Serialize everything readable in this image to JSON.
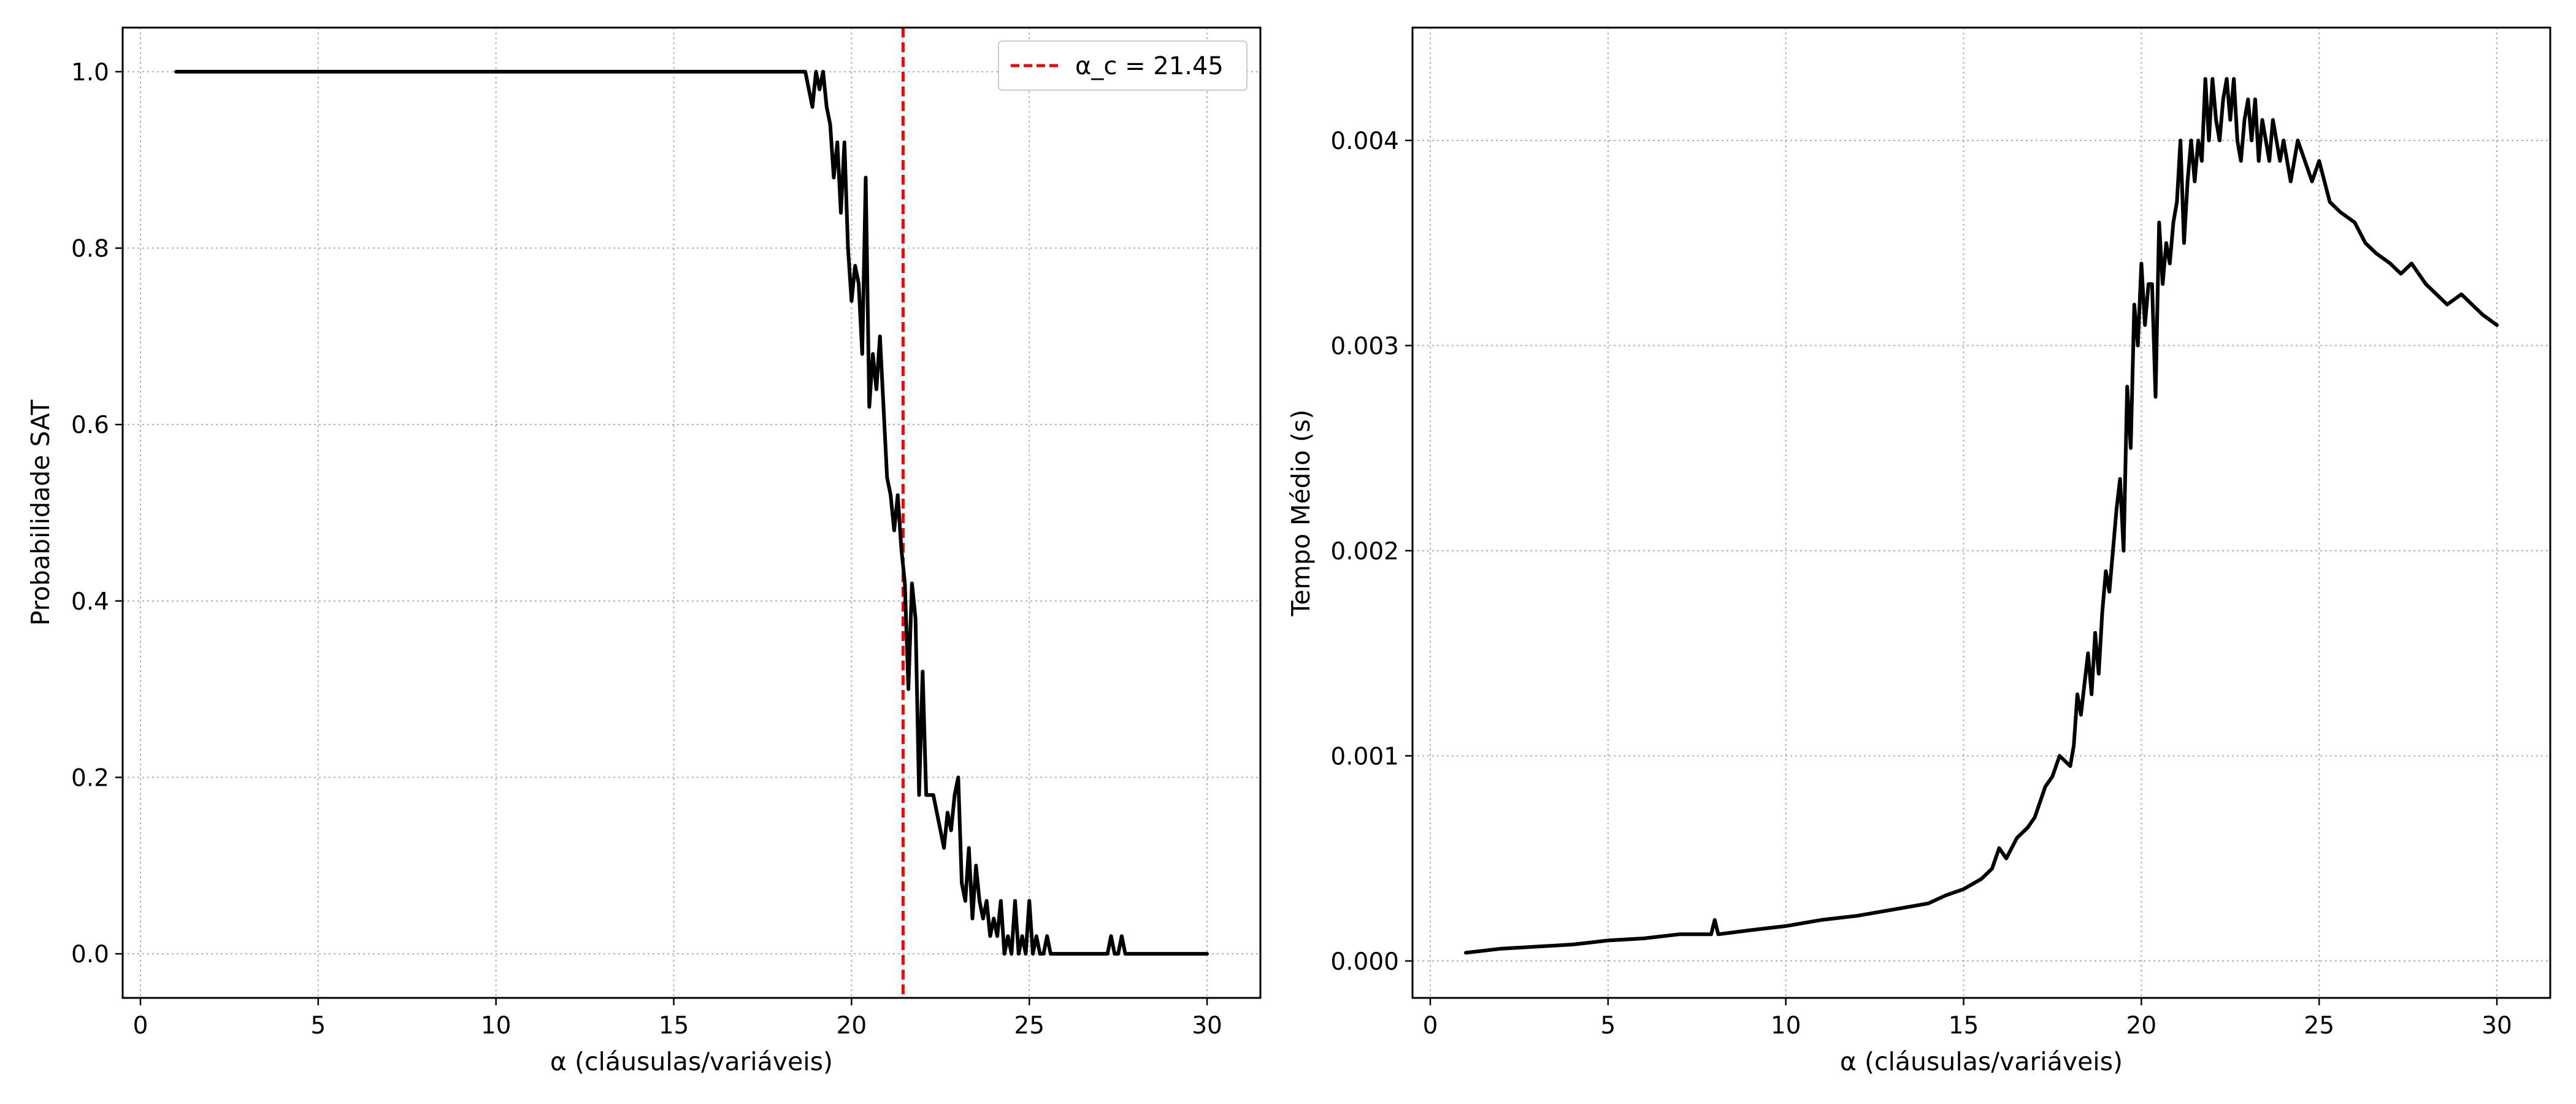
{
  "chart_data": [
    {
      "type": "line",
      "title": "",
      "xlabel": "α (cláusulas/variáveis)",
      "ylabel": "Probabilidade SAT",
      "xlim": [
        -0.5,
        31.5
      ],
      "ylim": [
        -0.05,
        1.05
      ],
      "xticks": [
        0,
        5,
        10,
        15,
        20,
        25,
        30
      ],
      "xtick_labels": [
        "0",
        "5",
        "10",
        "15",
        "20",
        "25",
        "30"
      ],
      "yticks": [
        0.0,
        0.2,
        0.4,
        0.6,
        0.8,
        1.0
      ],
      "ytick_labels": [
        "0.0",
        "0.2",
        "0.4",
        "0.6",
        "0.8",
        "1.0"
      ],
      "grid": true,
      "legend": {
        "position": "top-right",
        "entries": [
          {
            "label": "α_c = 21.45",
            "color": "#ff0000",
            "style": "dashed"
          }
        ]
      },
      "vline": {
        "x": 21.45,
        "color": "#ff0000"
      },
      "series": [
        {
          "color": "#000000",
          "x": [
            1.0,
            18.7,
            18.8,
            18.9,
            19.0,
            19.1,
            19.2,
            19.3,
            19.4,
            19.5,
            19.6,
            19.7,
            19.8,
            19.9,
            20.0,
            20.1,
            20.2,
            20.3,
            20.4,
            20.5,
            20.6,
            20.7,
            20.8,
            20.9,
            21.0,
            21.1,
            21.2,
            21.3,
            21.4,
            21.5,
            21.6,
            21.7,
            21.8,
            21.9,
            22.0,
            22.1,
            22.2,
            22.3,
            22.4,
            22.5,
            22.6,
            22.7,
            22.8,
            22.9,
            23.0,
            23.1,
            23.2,
            23.3,
            23.4,
            23.5,
            23.6,
            23.7,
            23.8,
            23.9,
            24.0,
            24.1,
            24.2,
            24.3,
            24.4,
            24.5,
            24.6,
            24.7,
            24.8,
            24.9,
            25.0,
            25.1,
            25.2,
            25.3,
            25.4,
            25.5,
            25.6,
            25.7,
            25.8,
            25.9,
            26.0,
            26.1,
            26.2,
            26.3,
            26.4,
            26.5,
            27.2,
            27.3,
            27.4,
            27.5,
            27.6,
            27.7,
            27.8,
            27.9,
            30.0
          ],
          "y": [
            1.0,
            1.0,
            0.98,
            0.96,
            1.0,
            0.98,
            1.0,
            0.96,
            0.94,
            0.88,
            0.92,
            0.84,
            0.92,
            0.8,
            0.74,
            0.78,
            0.76,
            0.68,
            0.88,
            0.62,
            0.68,
            0.64,
            0.7,
            0.62,
            0.54,
            0.52,
            0.48,
            0.52,
            0.46,
            0.42,
            0.3,
            0.42,
            0.38,
            0.18,
            0.32,
            0.18,
            0.18,
            0.18,
            0.16,
            0.14,
            0.12,
            0.16,
            0.14,
            0.18,
            0.2,
            0.08,
            0.06,
            0.12,
            0.04,
            0.1,
            0.06,
            0.04,
            0.06,
            0.02,
            0.04,
            0.02,
            0.06,
            0.0,
            0.02,
            0.0,
            0.06,
            0.0,
            0.02,
            0.0,
            0.06,
            0.0,
            0.02,
            0.0,
            0.0,
            0.02,
            0.0,
            0.0,
            0.0,
            0.0,
            0.0,
            0.0,
            0.0,
            0.0,
            0.0,
            0.0,
            0.0,
            0.02,
            0.0,
            0.0,
            0.02,
            0.0,
            0.0,
            0.0,
            0.0
          ]
        }
      ]
    },
    {
      "type": "line",
      "title": "",
      "xlabel": "α (cláusulas/variáveis)",
      "ylabel": "Tempo Médio (s)",
      "xlim": [
        -0.5,
        31.5
      ],
      "ylim": [
        -0.00018,
        0.00455
      ],
      "xticks": [
        0,
        5,
        10,
        15,
        20,
        25,
        30
      ],
      "xtick_labels": [
        "0",
        "5",
        "10",
        "15",
        "20",
        "25",
        "30"
      ],
      "yticks": [
        0.0,
        0.001,
        0.002,
        0.003,
        0.004
      ],
      "ytick_labels": [
        "0.000",
        "0.001",
        "0.002",
        "0.003",
        "0.004"
      ],
      "grid": true,
      "series": [
        {
          "color": "#000000",
          "x": [
            1.0,
            2.0,
            3.0,
            4.0,
            5.0,
            6.0,
            7.0,
            7.9,
            8.0,
            8.1,
            9.0,
            10.0,
            11.0,
            12.0,
            13.0,
            14.0,
            14.5,
            15.0,
            15.5,
            15.8,
            16.0,
            16.2,
            16.5,
            16.8,
            17.0,
            17.3,
            17.5,
            17.7,
            18.0,
            18.1,
            18.2,
            18.3,
            18.5,
            18.6,
            18.7,
            18.8,
            18.9,
            19.0,
            19.1,
            19.2,
            19.3,
            19.4,
            19.5,
            19.6,
            19.7,
            19.8,
            19.9,
            20.0,
            20.1,
            20.2,
            20.3,
            20.4,
            20.5,
            20.6,
            20.7,
            20.8,
            20.9,
            21.0,
            21.1,
            21.2,
            21.3,
            21.4,
            21.5,
            21.6,
            21.7,
            21.8,
            21.9,
            22.0,
            22.1,
            22.2,
            22.3,
            22.4,
            22.5,
            22.6,
            22.7,
            22.8,
            22.9,
            23.0,
            23.1,
            23.2,
            23.3,
            23.4,
            23.5,
            23.6,
            23.7,
            23.8,
            23.9,
            24.0,
            24.2,
            24.4,
            24.6,
            24.8,
            25.0,
            25.3,
            25.6,
            26.0,
            26.3,
            26.6,
            27.0,
            27.3,
            27.6,
            28.0,
            28.3,
            28.6,
            29.0,
            29.3,
            29.6,
            30.0
          ],
          "y": [
            4e-05,
            6e-05,
            7e-05,
            8e-05,
            0.0001,
            0.00011,
            0.00013,
            0.00013,
            0.0002,
            0.00013,
            0.00015,
            0.00017,
            0.0002,
            0.00022,
            0.00025,
            0.00028,
            0.00032,
            0.00035,
            0.0004,
            0.00045,
            0.00055,
            0.0005,
            0.0006,
            0.00065,
            0.0007,
            0.00085,
            0.0009,
            0.001,
            0.00095,
            0.00105,
            0.0013,
            0.0012,
            0.0015,
            0.0013,
            0.0016,
            0.0014,
            0.0017,
            0.0019,
            0.0018,
            0.002,
            0.0022,
            0.00235,
            0.002,
            0.0028,
            0.0025,
            0.0032,
            0.003,
            0.0034,
            0.0031,
            0.0033,
            0.0033,
            0.00275,
            0.0036,
            0.0033,
            0.0035,
            0.0034,
            0.0036,
            0.0037,
            0.004,
            0.0035,
            0.0038,
            0.004,
            0.0038,
            0.004,
            0.0039,
            0.0043,
            0.004,
            0.0043,
            0.0041,
            0.004,
            0.0042,
            0.0043,
            0.0041,
            0.0043,
            0.004,
            0.0039,
            0.0041,
            0.0042,
            0.004,
            0.0042,
            0.0039,
            0.0041,
            0.004,
            0.0039,
            0.0041,
            0.004,
            0.0039,
            0.004,
            0.0038,
            0.004,
            0.0039,
            0.0038,
            0.0039,
            0.0037,
            0.00365,
            0.0036,
            0.0035,
            0.00345,
            0.0034,
            0.00335,
            0.0034,
            0.0033,
            0.00325,
            0.0032,
            0.00325,
            0.0032,
            0.00315,
            0.0031
          ]
        }
      ]
    }
  ]
}
